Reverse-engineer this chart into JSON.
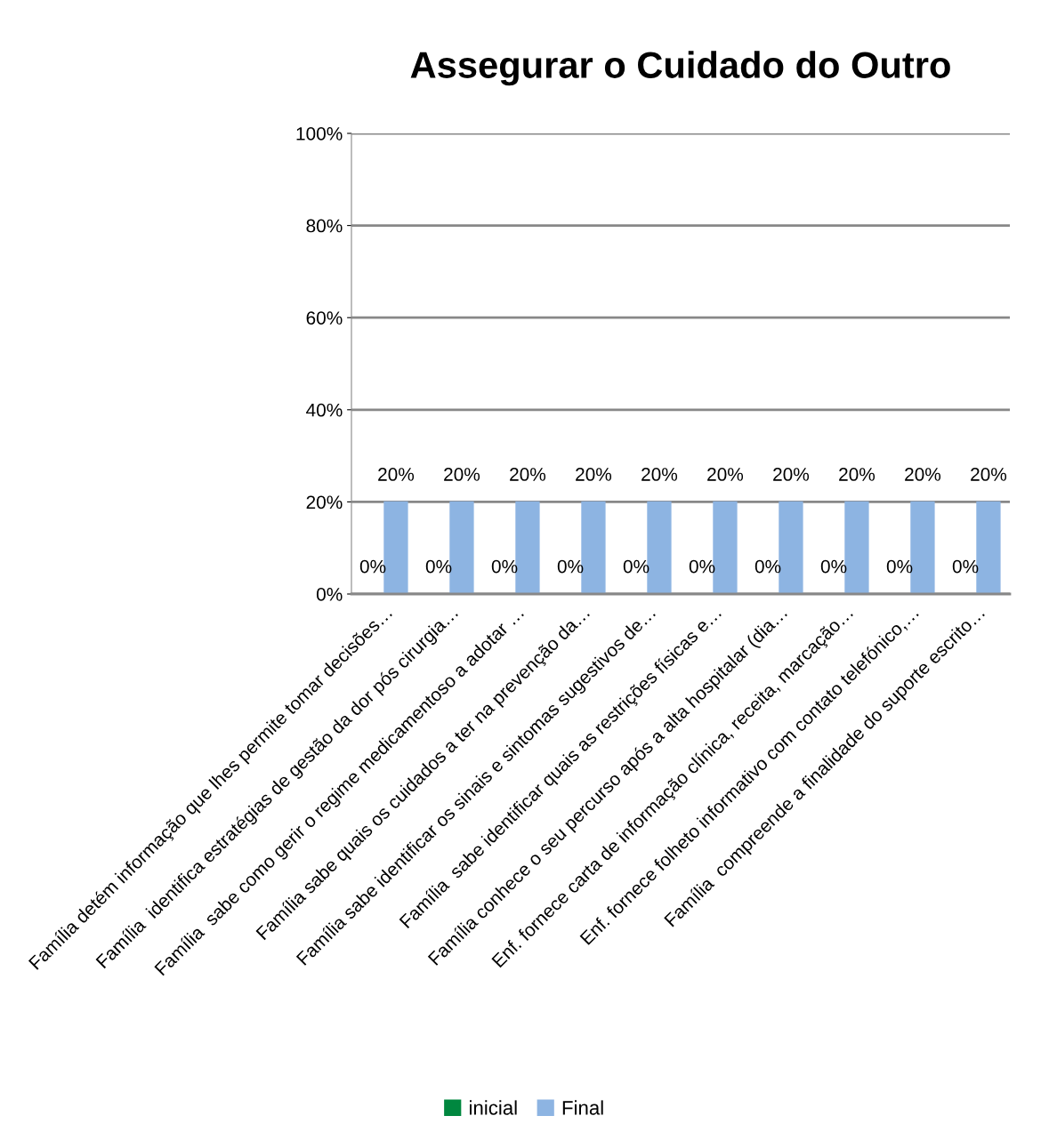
{
  "chart_data": {
    "type": "bar",
    "title": "Assegurar o Cuidado do Outro",
    "categories": [
      "Família detém informação que lhes permite tomar decisões…",
      "Família  identifica estratégias de gestão da dor pós cirurgia…",
      "Família  sabe como gerir o regime medicamentoso a adotar …",
      "Família sabe quais os cuidados a ter na prevenção da…",
      "Família sabe identificar os sinais e sintomas sugestivos de…",
      "Família  sabe identificar quais as restrições físicas e…",
      "Família conhece o seu percurso após a alta hospitalar (dia…",
      "Enf. fornece carta de informação clínica, receita, marcação…",
      "Enf. fornece folheto informativo com contato telefónico,…",
      "Família  compreende a finalidade do suporte escrito…"
    ],
    "series": [
      {
        "name": "inicial",
        "color": "#00873f",
        "values": [
          0,
          0,
          0,
          0,
          0,
          0,
          0,
          0,
          0,
          0
        ],
        "value_labels": [
          "0%",
          "0%",
          "0%",
          "0%",
          "0%",
          "0%",
          "0%",
          "0%",
          "0%",
          "0%"
        ]
      },
      {
        "name": "Final",
        "color": "#8db4e2",
        "values": [
          20,
          20,
          20,
          20,
          20,
          20,
          20,
          20,
          20,
          20
        ],
        "value_labels": [
          "20%",
          "20%",
          "20%",
          "20%",
          "20%",
          "20%",
          "20%",
          "20%",
          "20%",
          "20%"
        ]
      }
    ],
    "ylim": [
      0,
      100
    ],
    "yticks": [
      {
        "value": 0,
        "label": "0%"
      },
      {
        "value": 20,
        "label": "20%"
      },
      {
        "value": 40,
        "label": "40%"
      },
      {
        "value": 60,
        "label": "60%"
      },
      {
        "value": 80,
        "label": "80%"
      },
      {
        "value": 100,
        "label": "100%"
      }
    ],
    "grid": "y",
    "legend": "bottom"
  }
}
